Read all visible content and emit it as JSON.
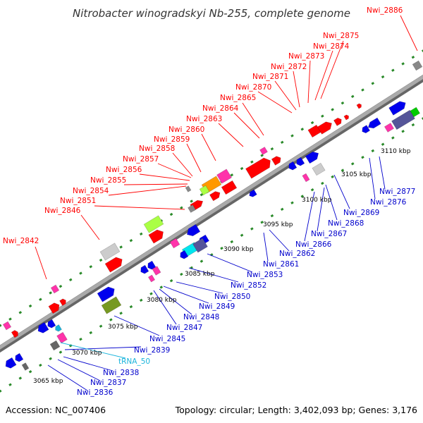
{
  "title": "Nitrobacter winogradskyi Nb-255, complete genome",
  "footer": {
    "accession": "Accession: NC_007406",
    "summary": "Topology: circular; Length: 3,402,093 bp; Genes: 3,176"
  },
  "colors": {
    "forward_label": "#ff0000",
    "reverse_label": "#0000cc",
    "trna_label": "#19b4dc",
    "backbone": "#888888",
    "track_dots": "#2a8a2a"
  },
  "forward_genes": [
    "Nwi_2886",
    "Nwi_2875",
    "Nwi_2874",
    "Nwi_2873",
    "Nwi_2872",
    "Nwi_2871",
    "Nwi_2870",
    "Nwi_2865",
    "Nwi_2864",
    "Nwi_2863",
    "Nwi_2860",
    "Nwi_2859",
    "Nwi_2858",
    "Nwi_2857",
    "Nwi_2856",
    "Nwi_2855",
    "Nwi_2854",
    "Nwi_2851",
    "Nwi_2846",
    "Nwi_2842"
  ],
  "reverse_genes": [
    "Nwi_2877",
    "Nwi_2876",
    "Nwi_2869",
    "Nwi_2868",
    "Nwi_2867",
    "Nwi_2866",
    "Nwi_2862",
    "Nwi_2861",
    "Nwi_2853",
    "Nwi_2852",
    "Nwi_2850",
    "Nwi_2849",
    "Nwi_2848",
    "Nwi_2847",
    "Nwi_2845",
    "Nwi_2839",
    "Nwi_2838",
    "Nwi_2837",
    "Nwi_2836"
  ],
  "trna_genes": [
    "tRNA_50"
  ],
  "scale_ticks": [
    "3110 kbp",
    "3105 kbp",
    "3100 kbp",
    "3095 kbp",
    "3090 kbp",
    "3085 kbp",
    "3080 kbp",
    "3075 kbp",
    "3070 kbp",
    "3065 kbp"
  ]
}
